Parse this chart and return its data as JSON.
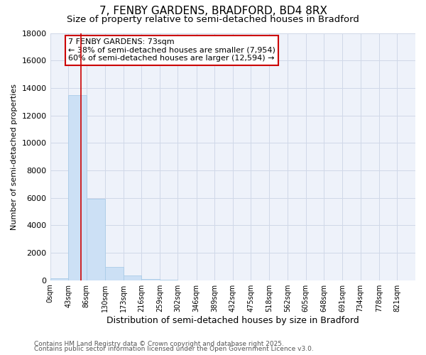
{
  "title": "7, FENBY GARDENS, BRADFORD, BD4 8RX",
  "subtitle": "Size of property relative to semi-detached houses in Bradford",
  "xlabel": "Distribution of semi-detached houses by size in Bradford",
  "ylabel": "Number of semi-detached properties",
  "annotation_title": "7 FENBY GARDENS: 73sqm",
  "annotation_line1": "← 38% of semi-detached houses are smaller (7,954)",
  "annotation_line2": "60% of semi-detached houses are larger (12,594) →",
  "property_sqm": 73,
  "footnote1": "Contains HM Land Registry data © Crown copyright and database right 2025.",
  "footnote2": "Contains public sector information licensed under the Open Government Licence v3.0.",
  "bar_edges": [
    0,
    43,
    86,
    130,
    173,
    216,
    259,
    302,
    346,
    389,
    432,
    475,
    518,
    562,
    605,
    648,
    691,
    734,
    778,
    821,
    864
  ],
  "bar_heights": [
    150,
    13500,
    5950,
    980,
    330,
    110,
    50,
    0,
    0,
    0,
    0,
    0,
    0,
    0,
    0,
    0,
    0,
    0,
    0,
    0
  ],
  "bar_color": "#cce0f5",
  "bar_edgecolor": "#aacce8",
  "redline_color": "#cc0000",
  "grid_color": "#d0d8e8",
  "background_color": "#eef2fa",
  "ylim": [
    0,
    18000
  ],
  "yticks": [
    0,
    2000,
    4000,
    6000,
    8000,
    10000,
    12000,
    14000,
    16000,
    18000
  ],
  "title_fontsize": 11,
  "subtitle_fontsize": 9.5,
  "xlabel_fontsize": 9,
  "ylabel_fontsize": 8,
  "tick_fontsize": 8,
  "xtick_fontsize": 7,
  "annotation_fontsize": 8,
  "footnote_fontsize": 6.5
}
